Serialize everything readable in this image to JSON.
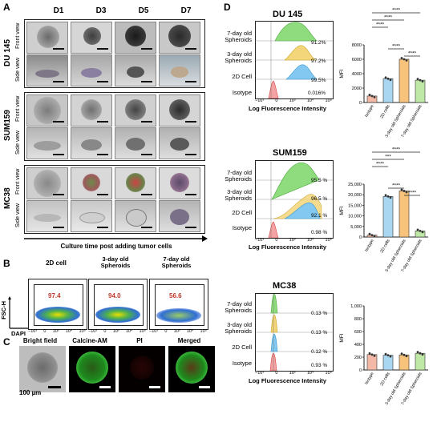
{
  "panel_a": {
    "label": "A",
    "columns": [
      "D1",
      "D3",
      "D5",
      "D7"
    ],
    "rows": [
      {
        "name": "DU 145",
        "views": [
          "Front view",
          "Side view"
        ]
      },
      {
        "name": "SUM159",
        "views": [
          "Front view",
          "Side view"
        ]
      },
      {
        "name": "MC38",
        "views": [
          "Front view",
          "Side view"
        ]
      }
    ],
    "caption": "Culture time post adding tumor cells"
  },
  "panel_b": {
    "label": "B",
    "plots": [
      {
        "title": "2D cell",
        "value": "97.4"
      },
      {
        "title": "3-day old Spheroids",
        "value": "94.0"
      },
      {
        "title": "7-day old Spheroids",
        "value": "56.6"
      }
    ],
    "ylabel": "FSC-H",
    "xlabel": "DAPI",
    "xticks": [
      "−10³",
      "0",
      "10³",
      "10⁴",
      "10⁵"
    ]
  },
  "panel_c": {
    "label": "C",
    "titles": [
      "Bright field",
      "Calcine-AM",
      "PI",
      "Merged"
    ],
    "scale": "100 µm"
  },
  "panel_d": {
    "label": "D",
    "hist_xlabel": "Log Fluorescence Intensity",
    "hist_xticks": [
      "−10³",
      "0",
      "10³",
      "10⁴",
      "10⁵"
    ],
    "groups": [
      {
        "title": "DU 145",
        "rows": [
          {
            "label": "7-day old Spheroids",
            "pct": "91.2%"
          },
          {
            "label": "3-day old Spheroids",
            "pct": "97.2%"
          },
          {
            "label": "2D Cell",
            "pct": "99.5%"
          },
          {
            "label": "Isotype",
            "pct": "0.016%"
          }
        ]
      },
      {
        "title": "SUM159",
        "rows": [
          {
            "label": "7-day old Spheroids",
            "pct": "95.5 %"
          },
          {
            "label": "3-day old Spheroids",
            "pct": "96.5 %"
          },
          {
            "label": "2D Cell",
            "pct": "92.1 %"
          },
          {
            "label": "Isotype",
            "pct": "0.98 %"
          }
        ]
      },
      {
        "title": "MC38",
        "rows": [
          {
            "label": "7-day old Spheroids",
            "pct": "0.13 %"
          },
          {
            "label": "3-day old Spheroids",
            "pct": "0.13 %"
          },
          {
            "label": "2D Cell",
            "pct": "0.12 %"
          },
          {
            "label": "Isotype",
            "pct": "0.93 %"
          }
        ]
      }
    ]
  },
  "chart_data": [
    {
      "type": "bar",
      "ylabel": "MFI",
      "categories": [
        "Isotype",
        "2D cells",
        "3-day old Spheroids",
        "7-day old Spheroids"
      ],
      "values": [
        900,
        3300,
        6000,
        3100
      ],
      "ylim": [
        0,
        8000
      ],
      "yticks": [
        "0",
        "2000",
        "4000",
        "6000",
        "8000"
      ],
      "significance": [
        "****",
        "****",
        "****",
        "****",
        "****"
      ],
      "colors": [
        "#f4b8a6",
        "#a9d6f0",
        "#f7c27a",
        "#bfe8a6"
      ]
    },
    {
      "type": "bar",
      "ylabel": "MFI",
      "categories": [
        "Isotype",
        "2D cells",
        "3-day old Spheroids",
        "7-day old Spheroids"
      ],
      "values": [
        900,
        19200,
        21800,
        2900
      ],
      "ylim": [
        0,
        25000
      ],
      "yticks": [
        "0",
        "5,000",
        "10,000",
        "15,000",
        "20,000",
        "25,000"
      ],
      "significance": [
        "****",
        "***",
        "****",
        "****",
        "****"
      ],
      "colors": [
        "#f4b8a6",
        "#a9d6f0",
        "#f7c27a",
        "#bfe8a6"
      ]
    },
    {
      "type": "bar",
      "ylabel": "MFI",
      "categories": [
        "Isotype",
        "2D cells",
        "3-day old Spheroids",
        "7-day old Spheroids"
      ],
      "values": [
        240,
        230,
        235,
        260
      ],
      "ylim": [
        0,
        1000
      ],
      "yticks": [
        "0",
        "200",
        "400",
        "600",
        "800",
        "1,000"
      ],
      "significance": [],
      "colors": [
        "#f4b8a6",
        "#a9d6f0",
        "#f7c27a",
        "#bfe8a6"
      ]
    }
  ]
}
